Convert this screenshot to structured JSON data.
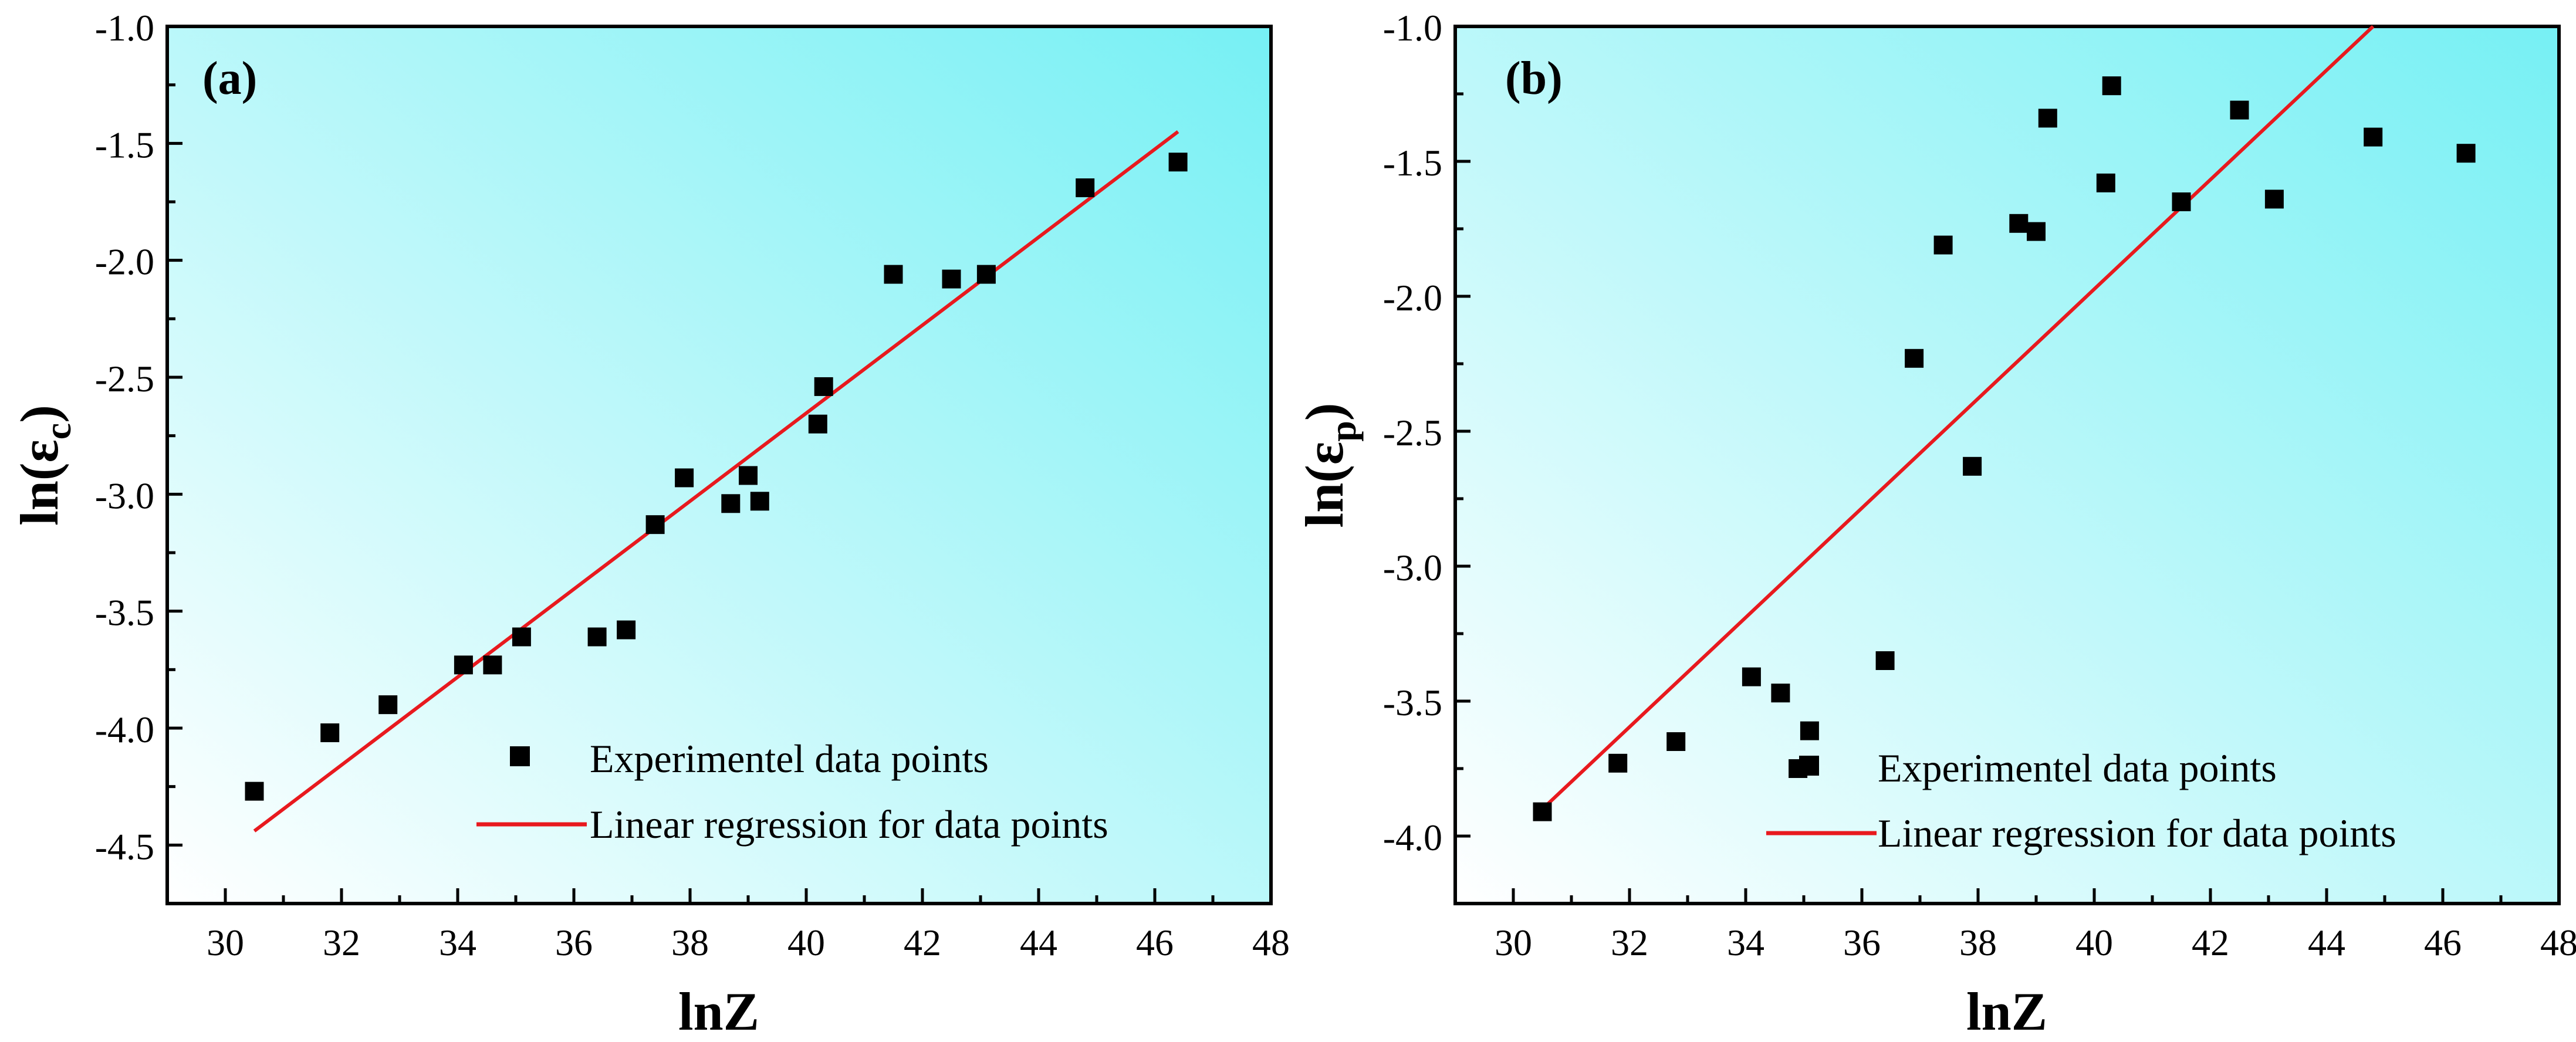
{
  "chart_data": [
    {
      "type": "scatter",
      "panel_label": "(a)",
      "xlabel": "lnZ",
      "ylabel_base": "ln(ε",
      "ylabel_sub": "c",
      "ylabel_close": ")",
      "xlim": [
        29,
        48
      ],
      "ylim": [
        -4.75,
        -1.0
      ],
      "xticks": [
        30,
        32,
        34,
        36,
        38,
        40,
        42,
        44,
        46,
        48
      ],
      "xtick_labels": [
        "30",
        "32",
        "34",
        "36",
        "38",
        "40",
        "42",
        "44",
        "46",
        "48"
      ],
      "yticks": [
        -1.0,
        -1.5,
        -2.0,
        -2.5,
        -3.0,
        -3.5,
        -4.0,
        -4.5
      ],
      "ytick_labels": [
        "-1.0",
        "-1.5",
        "-2.0",
        "-2.5",
        "-3.0",
        "-3.5",
        "-4.0",
        "-4.5"
      ],
      "series": [
        {
          "name": "Experimentel data points",
          "kind": "scatter",
          "color": "#000000",
          "x": [
            30.5,
            31.8,
            32.8,
            34.1,
            34.6,
            35.1,
            36.4,
            36.9,
            37.4,
            37.9,
            38.7,
            39.0,
            39.2,
            40.2,
            40.3,
            41.5,
            42.5,
            43.1,
            44.8,
            46.4
          ],
          "y": [
            -4.27,
            -4.02,
            -3.9,
            -3.73,
            -3.73,
            -3.61,
            -3.61,
            -3.58,
            -3.13,
            -2.93,
            -3.04,
            -2.92,
            -3.03,
            -2.7,
            -2.54,
            -2.06,
            -2.08,
            -2.06,
            -1.69,
            -1.58
          ]
        },
        {
          "name": "Linear regression for data points",
          "kind": "line",
          "color": "#e8191e",
          "x": [
            30.5,
            46.4
          ],
          "y": [
            -4.44,
            -1.45
          ]
        }
      ]
    },
    {
      "type": "scatter",
      "panel_label": "(b)",
      "xlabel": "lnZ",
      "ylabel_base": "ln(ε",
      "ylabel_sub": "p",
      "ylabel_close": ")",
      "xlim": [
        29,
        48
      ],
      "ylim": [
        -4.25,
        -1.0
      ],
      "xticks": [
        30,
        32,
        34,
        36,
        38,
        40,
        42,
        44,
        46,
        48
      ],
      "xtick_labels": [
        "30",
        "32",
        "34",
        "36",
        "38",
        "40",
        "42",
        "44",
        "46",
        "48"
      ],
      "yticks": [
        -1.0,
        -1.5,
        -2.0,
        -2.5,
        -3.0,
        -3.5,
        -4.0
      ],
      "ytick_labels": [
        "-1.0",
        "-1.5",
        "-2.0",
        "-2.5",
        "-3.0",
        "-3.5",
        "-4.0"
      ],
      "series": [
        {
          "name": "Experimentel data points",
          "kind": "scatter",
          "color": "#000000",
          "x": [
            30.5,
            31.8,
            32.8,
            34.1,
            34.6,
            34.9,
            35.1,
            36.4,
            36.9,
            37.4,
            37.9,
            38.7,
            39.0,
            39.2,
            40.2,
            40.3,
            41.5,
            42.5,
            43.1,
            44.8,
            46.4
          ],
          "y": [
            -3.91,
            -3.73,
            -3.65,
            -3.41,
            -3.47,
            -3.75,
            -3.61,
            -3.35,
            -2.23,
            -1.81,
            -2.63,
            -1.73,
            -1.76,
            -1.34,
            -1.58,
            -1.22,
            -1.65,
            -1.31,
            -1.64,
            -1.41,
            -1.47
          ]
        },
        {
          "name": "Linear regression for data points",
          "kind": "line",
          "color": "#e8191e",
          "x": [
            30.5,
            44.8
          ],
          "y": [
            -3.9,
            -1.0
          ]
        }
      ]
    }
  ]
}
